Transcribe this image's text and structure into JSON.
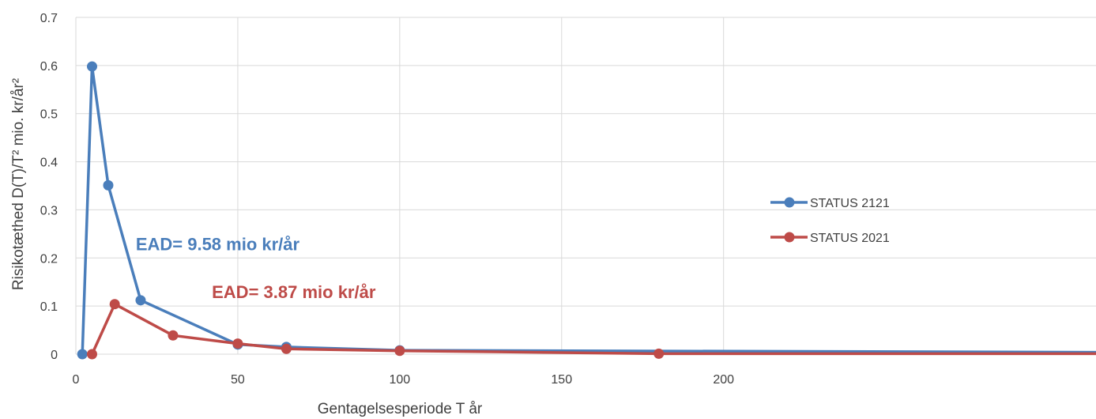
{
  "chart_data": {
    "type": "line",
    "xlabel": "Gentagelsesperiode T år",
    "ylabel": "Risikotæthed D(T)/T² mio. kr/år²",
    "xlim": [
      0,
      315
    ],
    "ylim": [
      0,
      0.7
    ],
    "x_ticks": [
      0,
      50,
      100,
      150,
      200
    ],
    "y_ticks": [
      0,
      0.1,
      0.2,
      0.3,
      0.4,
      0.5,
      0.6,
      0.7
    ],
    "x_tick_labels": [
      "0",
      "50",
      "100",
      "150",
      "200"
    ],
    "y_tick_labels": [
      "0",
      "0.1",
      "0.2",
      "0.3",
      "0.4",
      "0.5",
      "0.6",
      "0.7"
    ],
    "grid": true,
    "legend_position": "right",
    "series": [
      {
        "name": "STATUS 2121",
        "color": "#4a7ebb",
        "x": [
          2,
          5,
          10,
          20,
          50,
          65,
          100,
          315
        ],
        "y": [
          0,
          0.598,
          0.351,
          0.112,
          0.02,
          0.015,
          0.008,
          0.004
        ],
        "markers": [
          true,
          true,
          true,
          true,
          true,
          true,
          true,
          false
        ]
      },
      {
        "name": "STATUS 2021",
        "color": "#be4b48",
        "x": [
          5,
          12,
          30,
          50,
          65,
          100,
          180,
          315
        ],
        "y": [
          0,
          0.104,
          0.039,
          0.022,
          0.011,
          0.007,
          0.001,
          0.001
        ],
        "markers": [
          true,
          true,
          true,
          true,
          true,
          true,
          true,
          false
        ]
      }
    ],
    "annotations": [
      {
        "text": "EAD= 9.58 mio kr/år",
        "color": "#4a7ebb",
        "x": 18.5,
        "y": 0.2
      },
      {
        "text": "EAD= 3.87 mio kr/år",
        "color": "#be4b48",
        "x": 42,
        "y": 0.1
      }
    ]
  },
  "colors": {
    "grid": "#d9d9d9",
    "text": "#404040"
  }
}
